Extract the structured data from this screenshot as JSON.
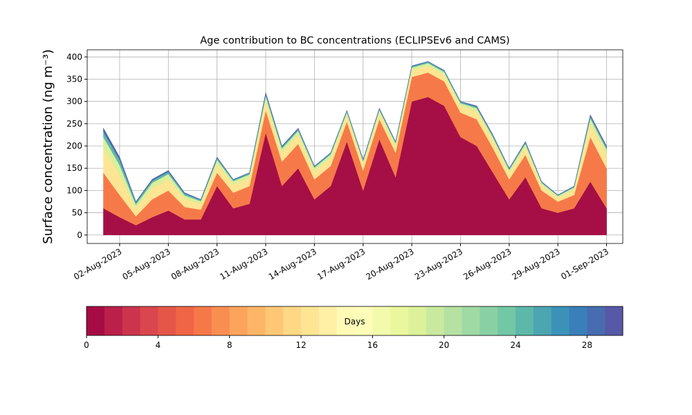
{
  "chart_data": {
    "type": "stacked_area",
    "title": "Age contribution to BC concentrations (ECLIPSEv6 and CAMS)",
    "ylabel": "Surface concentration (ng m⁻³)",
    "x": [
      "2023-08-01",
      "2023-08-02",
      "2023-08-03",
      "2023-08-04",
      "2023-08-05",
      "2023-08-06",
      "2023-08-07",
      "2023-08-08",
      "2023-08-09",
      "2023-08-10",
      "2023-08-11",
      "2023-08-12",
      "2023-08-13",
      "2023-08-14",
      "2023-08-15",
      "2023-08-16",
      "2023-08-17",
      "2023-08-18",
      "2023-08-19",
      "2023-08-20",
      "2023-08-21",
      "2023-08-22",
      "2023-08-23",
      "2023-08-24",
      "2023-08-25",
      "2023-08-26",
      "2023-08-27",
      "2023-08-28",
      "2023-08-29",
      "2023-08-30",
      "2023-08-31",
      "2023-09-01"
    ],
    "series": [
      {
        "color": "#a50f45",
        "values": [
          60,
          40,
          22,
          40,
          55,
          35,
          35,
          110,
          60,
          70,
          230,
          110,
          150,
          80,
          110,
          210,
          100,
          215,
          130,
          300,
          310,
          290,
          220,
          200,
          140,
          80,
          130,
          60,
          50,
          60,
          120,
          60
        ]
      },
      {
        "color": "#f67a49",
        "values": [
          80,
          50,
          20,
          40,
          45,
          28,
          22,
          30,
          35,
          40,
          50,
          55,
          55,
          45,
          45,
          45,
          45,
          45,
          55,
          55,
          55,
          55,
          55,
          60,
          55,
          45,
          50,
          40,
          25,
          30,
          100,
          90
        ]
      },
      {
        "color": "#fee593",
        "values": [
          55,
          45,
          18,
          25,
          25,
          18,
          13,
          20,
          18,
          18,
          22,
          20,
          20,
          18,
          18,
          15,
          15,
          15,
          15,
          15,
          15,
          15,
          15,
          18,
          18,
          15,
          18,
          12,
          9,
          12,
          30,
          30
        ]
      },
      {
        "color": "#d9ef9b",
        "values": [
          25,
          22,
          8,
          12,
          12,
          8,
          6,
          9,
          8,
          8,
          10,
          9,
          9,
          8,
          8,
          6,
          6,
          6,
          6,
          6,
          6,
          6,
          6,
          7,
          7,
          6,
          7,
          5,
          4,
          5,
          12,
          12
        ]
      },
      {
        "color": "#5cb7a9",
        "values": [
          12,
          12,
          5,
          5,
          5,
          4,
          3,
          4,
          3,
          3,
          5,
          4,
          4,
          3,
          3,
          3,
          3,
          3,
          3,
          3,
          3,
          3,
          3,
          3,
          3,
          3,
          3,
          2,
          1,
          2,
          5,
          5
        ]
      },
      {
        "color": "#4d65ad",
        "values": [
          8,
          6,
          2,
          3,
          3,
          2,
          1,
          2,
          1,
          1,
          3,
          2,
          2,
          1,
          1,
          1,
          1,
          1,
          1,
          1,
          1,
          1,
          1,
          2,
          2,
          1,
          2,
          1,
          1,
          1,
          3,
          3
        ]
      }
    ],
    "xlim": [
      "2023-07-31",
      "2023-09-02"
    ],
    "xticks": [
      {
        "value": "2023-08-02",
        "label": "02-Aug-2023"
      },
      {
        "value": "2023-08-05",
        "label": "05-Aug-2023"
      },
      {
        "value": "2023-08-08",
        "label": "08-Aug-2023"
      },
      {
        "value": "2023-08-11",
        "label": "11-Aug-2023"
      },
      {
        "value": "2023-08-14",
        "label": "14-Aug-2023"
      },
      {
        "value": "2023-08-17",
        "label": "17-Aug-2023"
      },
      {
        "value": "2023-08-20",
        "label": "20-Aug-2023"
      },
      {
        "value": "2023-08-23",
        "label": "23-Aug-2023"
      },
      {
        "value": "2023-08-26",
        "label": "26-Aug-2023"
      },
      {
        "value": "2023-08-29",
        "label": "29-Aug-2023"
      },
      {
        "value": "2023-09-01",
        "label": "01-Sep-2023"
      }
    ],
    "ylim": [
      -19,
      416
    ],
    "yticks": [
      0,
      50,
      100,
      150,
      200,
      250,
      300,
      350,
      400
    ],
    "grid": true,
    "colorbar": {
      "label": "Days",
      "lim": [
        0,
        30
      ],
      "ticks": [
        0,
        4,
        8,
        12,
        16,
        20,
        24,
        28
      ],
      "levels": 30,
      "colormap": [
        "#9e0142",
        "#d53e4f",
        "#f46d43",
        "#fdae61",
        "#fee08b",
        "#ffffbf",
        "#e6f598",
        "#abdda4",
        "#66c2a5",
        "#3288bd",
        "#5e4fa2"
      ]
    }
  }
}
